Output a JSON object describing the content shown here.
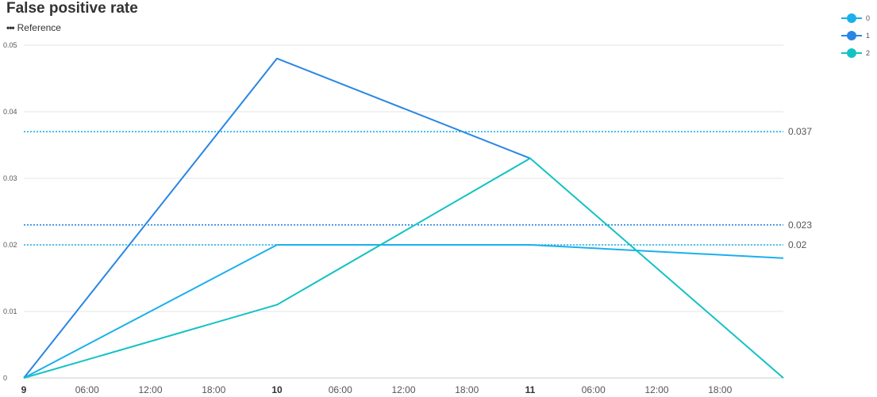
{
  "title": "False positive rate",
  "reference_label": "Reference",
  "reference_marker": "•••",
  "chart_data": {
    "type": "line",
    "title": "False positive rate",
    "xlabel": "",
    "ylabel": "",
    "x_tick_labels": [
      "9",
      "06:00",
      "12:00",
      "18:00",
      "10",
      "06:00",
      "12:00",
      "18:00",
      "11",
      "06:00",
      "12:00",
      "18:00"
    ],
    "x_tick_bold": [
      true,
      false,
      false,
      false,
      true,
      false,
      false,
      false,
      true,
      false,
      false,
      false
    ],
    "x_tick_hours": [
      0,
      6,
      12,
      18,
      24,
      30,
      36,
      42,
      48,
      54,
      60,
      66
    ],
    "xlim": [
      0,
      72
    ],
    "ylim": [
      0,
      0.05
    ],
    "y_ticks": [
      "0",
      "0.01",
      "0.02",
      "0.03",
      "0.04",
      "0.05"
    ],
    "y_tick_values": [
      0,
      0.01,
      0.02,
      0.03,
      0.04,
      0.05
    ],
    "grid": true,
    "legend_position": "top-right",
    "series": [
      {
        "name": "0",
        "color": "#1ab0ed",
        "x_hours": [
          0,
          24,
          48,
          72
        ],
        "values": [
          0,
          0.02,
          0.02,
          0.018
        ]
      },
      {
        "name": "1",
        "color": "#2a86e3",
        "x_hours": [
          0,
          24,
          48
        ],
        "values": [
          0,
          0.048,
          0.033
        ]
      },
      {
        "name": "2",
        "color": "#14c2c4",
        "x_hours": [
          0,
          24,
          48,
          72
        ],
        "values": [
          0,
          0.011,
          0.033,
          0
        ]
      }
    ],
    "reference_lines": [
      {
        "value": 0.037,
        "label": "0.037",
        "color": "#1ab0ed"
      },
      {
        "value": 0.023,
        "label": "0.023",
        "color": "#2a86e3"
      },
      {
        "value": 0.02,
        "label": "0.02",
        "color": "#1ab0ed"
      }
    ]
  }
}
